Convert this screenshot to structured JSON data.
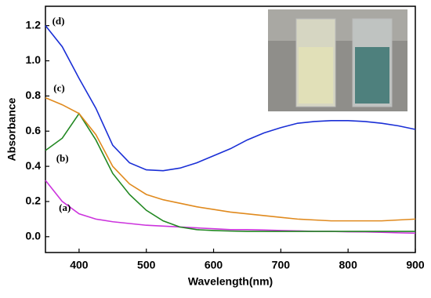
{
  "chart_data": {
    "type": "line",
    "x_label": "Wavelength(nm)",
    "y_label": "Absorbance",
    "x": [
      350,
      375,
      400,
      425,
      450,
      475,
      500,
      525,
      550,
      575,
      600,
      625,
      650,
      675,
      700,
      725,
      750,
      775,
      800,
      825,
      850,
      875,
      900
    ],
    "series": [
      {
        "name": "(a)",
        "color": "#cc33dd",
        "values": [
          0.32,
          0.2,
          0.13,
          0.1,
          0.085,
          0.075,
          0.065,
          0.06,
          0.055,
          0.05,
          0.045,
          0.04,
          0.04,
          0.038,
          0.035,
          0.033,
          0.03,
          0.03,
          0.028,
          0.027,
          0.025,
          0.022,
          0.02
        ]
      },
      {
        "name": "(b)",
        "color": "#228822",
        "values": [
          0.49,
          0.56,
          0.7,
          0.55,
          0.36,
          0.24,
          0.15,
          0.09,
          0.055,
          0.04,
          0.035,
          0.032,
          0.03,
          0.03,
          0.03,
          0.03,
          0.03,
          0.03,
          0.03,
          0.03,
          0.03,
          0.03,
          0.03
        ]
      },
      {
        "name": "(c)",
        "color": "#e08a1e",
        "values": [
          0.79,
          0.75,
          0.7,
          0.58,
          0.4,
          0.3,
          0.24,
          0.21,
          0.19,
          0.17,
          0.155,
          0.14,
          0.13,
          0.12,
          0.11,
          0.1,
          0.095,
          0.09,
          0.09,
          0.09,
          0.09,
          0.095,
          0.1
        ]
      },
      {
        "name": "(d)",
        "color": "#1a2fd6",
        "values": [
          1.2,
          1.08,
          0.9,
          0.73,
          0.52,
          0.42,
          0.38,
          0.375,
          0.39,
          0.42,
          0.46,
          0.5,
          0.55,
          0.59,
          0.62,
          0.645,
          0.655,
          0.66,
          0.66,
          0.655,
          0.645,
          0.63,
          0.61
        ]
      }
    ],
    "xlim": [
      350,
      900
    ],
    "xticks": [
      400,
      500,
      600,
      700,
      800,
      900
    ],
    "ylim": [
      -0.09,
      1.31
    ],
    "yticks": [
      {
        "value": 0,
        "label": "0.0"
      },
      0.2,
      0.4,
      0.6,
      0.8,
      {
        "value": 1,
        "label": "1.0"
      },
      1.2
    ]
  }
}
